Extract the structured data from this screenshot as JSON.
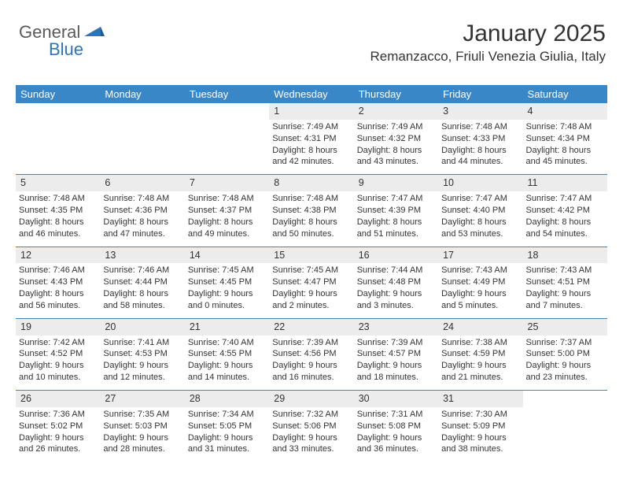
{
  "logo": {
    "part1": "General",
    "part2": "Blue"
  },
  "header": {
    "monthTitle": "January 2025",
    "location": "Remanzacco, Friuli Venezia Giulia, Italy"
  },
  "weekdays": [
    "Sunday",
    "Monday",
    "Tuesday",
    "Wednesday",
    "Thursday",
    "Friday",
    "Saturday"
  ],
  "weeks": [
    [
      null,
      null,
      null,
      {
        "num": "1",
        "sunrise": "Sunrise: 7:49 AM",
        "sunset": "Sunset: 4:31 PM",
        "day1": "Daylight: 8 hours",
        "day2": "and 42 minutes."
      },
      {
        "num": "2",
        "sunrise": "Sunrise: 7:49 AM",
        "sunset": "Sunset: 4:32 PM",
        "day1": "Daylight: 8 hours",
        "day2": "and 43 minutes."
      },
      {
        "num": "3",
        "sunrise": "Sunrise: 7:48 AM",
        "sunset": "Sunset: 4:33 PM",
        "day1": "Daylight: 8 hours",
        "day2": "and 44 minutes."
      },
      {
        "num": "4",
        "sunrise": "Sunrise: 7:48 AM",
        "sunset": "Sunset: 4:34 PM",
        "day1": "Daylight: 8 hours",
        "day2": "and 45 minutes."
      }
    ],
    [
      {
        "num": "5",
        "sunrise": "Sunrise: 7:48 AM",
        "sunset": "Sunset: 4:35 PM",
        "day1": "Daylight: 8 hours",
        "day2": "and 46 minutes."
      },
      {
        "num": "6",
        "sunrise": "Sunrise: 7:48 AM",
        "sunset": "Sunset: 4:36 PM",
        "day1": "Daylight: 8 hours",
        "day2": "and 47 minutes."
      },
      {
        "num": "7",
        "sunrise": "Sunrise: 7:48 AM",
        "sunset": "Sunset: 4:37 PM",
        "day1": "Daylight: 8 hours",
        "day2": "and 49 minutes."
      },
      {
        "num": "8",
        "sunrise": "Sunrise: 7:48 AM",
        "sunset": "Sunset: 4:38 PM",
        "day1": "Daylight: 8 hours",
        "day2": "and 50 minutes."
      },
      {
        "num": "9",
        "sunrise": "Sunrise: 7:47 AM",
        "sunset": "Sunset: 4:39 PM",
        "day1": "Daylight: 8 hours",
        "day2": "and 51 minutes."
      },
      {
        "num": "10",
        "sunrise": "Sunrise: 7:47 AM",
        "sunset": "Sunset: 4:40 PM",
        "day1": "Daylight: 8 hours",
        "day2": "and 53 minutes."
      },
      {
        "num": "11",
        "sunrise": "Sunrise: 7:47 AM",
        "sunset": "Sunset: 4:42 PM",
        "day1": "Daylight: 8 hours",
        "day2": "and 54 minutes."
      }
    ],
    [
      {
        "num": "12",
        "sunrise": "Sunrise: 7:46 AM",
        "sunset": "Sunset: 4:43 PM",
        "day1": "Daylight: 8 hours",
        "day2": "and 56 minutes."
      },
      {
        "num": "13",
        "sunrise": "Sunrise: 7:46 AM",
        "sunset": "Sunset: 4:44 PM",
        "day1": "Daylight: 8 hours",
        "day2": "and 58 minutes."
      },
      {
        "num": "14",
        "sunrise": "Sunrise: 7:45 AM",
        "sunset": "Sunset: 4:45 PM",
        "day1": "Daylight: 9 hours",
        "day2": "and 0 minutes."
      },
      {
        "num": "15",
        "sunrise": "Sunrise: 7:45 AM",
        "sunset": "Sunset: 4:47 PM",
        "day1": "Daylight: 9 hours",
        "day2": "and 2 minutes."
      },
      {
        "num": "16",
        "sunrise": "Sunrise: 7:44 AM",
        "sunset": "Sunset: 4:48 PM",
        "day1": "Daylight: 9 hours",
        "day2": "and 3 minutes."
      },
      {
        "num": "17",
        "sunrise": "Sunrise: 7:43 AM",
        "sunset": "Sunset: 4:49 PM",
        "day1": "Daylight: 9 hours",
        "day2": "and 5 minutes."
      },
      {
        "num": "18",
        "sunrise": "Sunrise: 7:43 AM",
        "sunset": "Sunset: 4:51 PM",
        "day1": "Daylight: 9 hours",
        "day2": "and 7 minutes."
      }
    ],
    [
      {
        "num": "19",
        "sunrise": "Sunrise: 7:42 AM",
        "sunset": "Sunset: 4:52 PM",
        "day1": "Daylight: 9 hours",
        "day2": "and 10 minutes."
      },
      {
        "num": "20",
        "sunrise": "Sunrise: 7:41 AM",
        "sunset": "Sunset: 4:53 PM",
        "day1": "Daylight: 9 hours",
        "day2": "and 12 minutes."
      },
      {
        "num": "21",
        "sunrise": "Sunrise: 7:40 AM",
        "sunset": "Sunset: 4:55 PM",
        "day1": "Daylight: 9 hours",
        "day2": "and 14 minutes."
      },
      {
        "num": "22",
        "sunrise": "Sunrise: 7:39 AM",
        "sunset": "Sunset: 4:56 PM",
        "day1": "Daylight: 9 hours",
        "day2": "and 16 minutes."
      },
      {
        "num": "23",
        "sunrise": "Sunrise: 7:39 AM",
        "sunset": "Sunset: 4:57 PM",
        "day1": "Daylight: 9 hours",
        "day2": "and 18 minutes."
      },
      {
        "num": "24",
        "sunrise": "Sunrise: 7:38 AM",
        "sunset": "Sunset: 4:59 PM",
        "day1": "Daylight: 9 hours",
        "day2": "and 21 minutes."
      },
      {
        "num": "25",
        "sunrise": "Sunrise: 7:37 AM",
        "sunset": "Sunset: 5:00 PM",
        "day1": "Daylight: 9 hours",
        "day2": "and 23 minutes."
      }
    ],
    [
      {
        "num": "26",
        "sunrise": "Sunrise: 7:36 AM",
        "sunset": "Sunset: 5:02 PM",
        "day1": "Daylight: 9 hours",
        "day2": "and 26 minutes."
      },
      {
        "num": "27",
        "sunrise": "Sunrise: 7:35 AM",
        "sunset": "Sunset: 5:03 PM",
        "day1": "Daylight: 9 hours",
        "day2": "and 28 minutes."
      },
      {
        "num": "28",
        "sunrise": "Sunrise: 7:34 AM",
        "sunset": "Sunset: 5:05 PM",
        "day1": "Daylight: 9 hours",
        "day2": "and 31 minutes."
      },
      {
        "num": "29",
        "sunrise": "Sunrise: 7:32 AM",
        "sunset": "Sunset: 5:06 PM",
        "day1": "Daylight: 9 hours",
        "day2": "and 33 minutes."
      },
      {
        "num": "30",
        "sunrise": "Sunrise: 7:31 AM",
        "sunset": "Sunset: 5:08 PM",
        "day1": "Daylight: 9 hours",
        "day2": "and 36 minutes."
      },
      {
        "num": "31",
        "sunrise": "Sunrise: 7:30 AM",
        "sunset": "Sunset: 5:09 PM",
        "day1": "Daylight: 9 hours",
        "day2": "and 38 minutes."
      },
      null
    ]
  ],
  "colors": {
    "headerBg": "#3a87c8",
    "dayNumBg": "#ececec",
    "rowBorder": "#3a87c8"
  }
}
